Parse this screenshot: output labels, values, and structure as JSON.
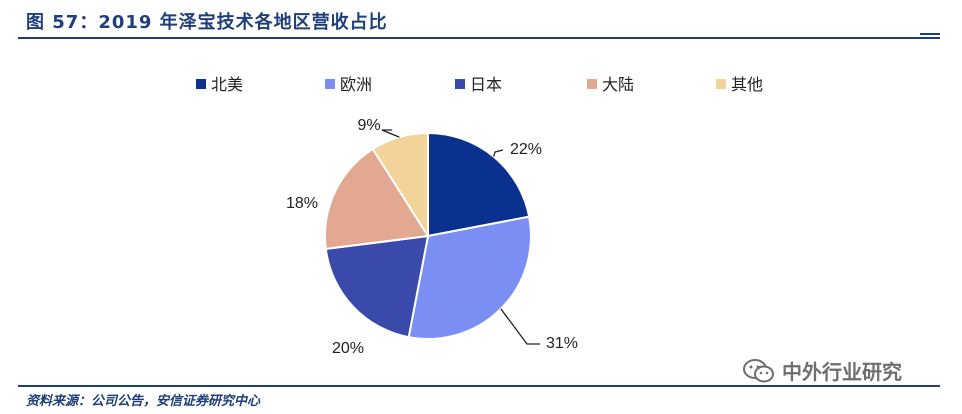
{
  "header": {
    "title": "图 57：2019 年泽宝技术各地区营收占比"
  },
  "footer": {
    "source": "资料来源：公司公告，安信证券研究中心"
  },
  "watermark": {
    "text": "中外行业研究",
    "icon": "wechat-icon"
  },
  "chart_data": {
    "type": "pie",
    "title": "",
    "legend_position": "top",
    "categories": [
      "北美",
      "欧洲",
      "日本",
      "大陆",
      "其他"
    ],
    "values": [
      22,
      31,
      20,
      18,
      9
    ],
    "labels": [
      "22%",
      "31%",
      "20%",
      "18%",
      "9%"
    ],
    "colors": [
      "#0b318f",
      "#7b8ef4",
      "#3a4aab",
      "#e3a892",
      "#f4d39b"
    ]
  }
}
